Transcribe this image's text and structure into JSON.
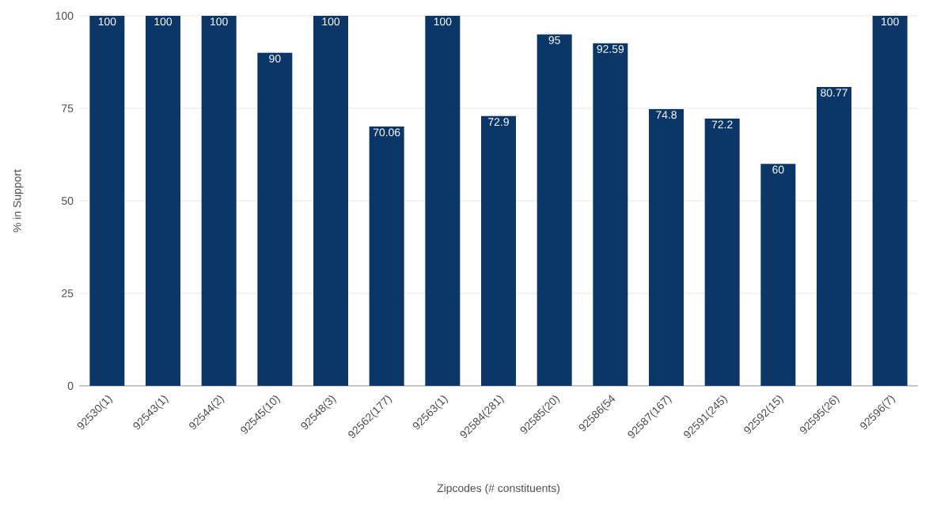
{
  "chart_data": {
    "type": "bar",
    "xlabel": "Zipcodes (# constituents)",
    "ylabel": "% in Support",
    "categories": [
      "92530(1)",
      "92543(1)",
      "92544(2)",
      "92545(10)",
      "92548(3)",
      "92562(177)",
      "92563(1)",
      "92584(281)",
      "92585(20)",
      "92586(54",
      "92587(167)",
      "92591(245)",
      "92592(15)",
      "92595(26)",
      "92596(7)"
    ],
    "values": [
      100,
      100,
      100,
      90,
      100,
      70.06,
      100,
      72.9,
      95,
      92.59,
      74.8,
      72.2,
      60,
      80.77,
      100
    ],
    "color": "#0b3768",
    "ylim": [
      0,
      100
    ],
    "yticks": [
      0,
      25,
      50,
      75,
      100
    ],
    "grid": "y",
    "data_labels": true
  }
}
